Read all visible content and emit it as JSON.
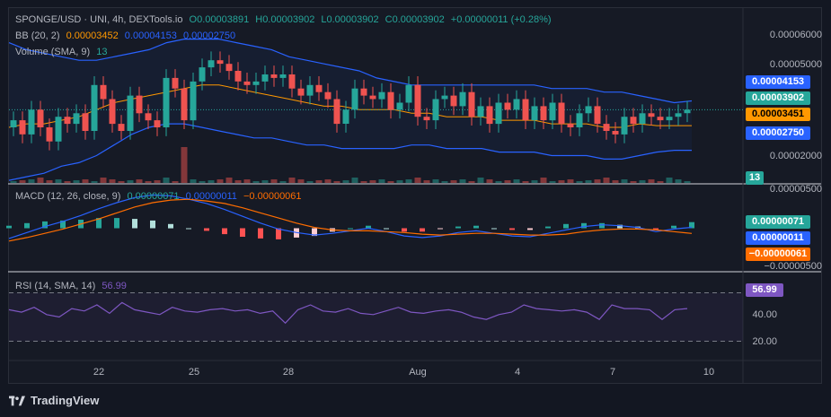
{
  "header": {
    "symbol": "SPONGE/USD · UNI, 4h, DEXTools.io",
    "open": "O0.00003891",
    "high": "H0.00003902",
    "low": "L0.00003902",
    "close": "C0.00003902",
    "change": "+0.00000011 (+0.28%)"
  },
  "bb_legend": {
    "label": "BB (20, 2)",
    "basis": "0.00003452",
    "upper": "0.00004153",
    "lower": "0.00002750"
  },
  "volume_legend": {
    "label": "Volume (SMA, 9)",
    "value": "13"
  },
  "macd_legend": {
    "label": "MACD (12, 26, close, 9)",
    "hist": "0.00000071",
    "macd": "0.00000011",
    "signal": "−0.00000061"
  },
  "rsi_legend": {
    "label": "RSI (14, SMA, 14)",
    "value": "56.99"
  },
  "price_axis": [
    "0.00006000",
    "0.00005000",
    "0.00002000"
  ],
  "price_tags": {
    "upper": "0.00004153",
    "last": "0.00003902",
    "basis": "0.00003451",
    "lower": "0.00002750",
    "volume": "13"
  },
  "macd_axis": [
    "0.00000500",
    "−0.00000500"
  ],
  "macd_tags": {
    "hist": "0.00000071",
    "macd": "0.00000011",
    "signal": "−0.00000061"
  },
  "rsi_axis": [
    "40.00",
    "20.00"
  ],
  "rsi_tag": "56.99",
  "x_axis": [
    "22",
    "25",
    "28",
    "Aug",
    "4",
    "7",
    "10"
  ],
  "brand": "TradingView",
  "colors": {
    "up": "#26a69a",
    "down": "#ef5350",
    "bb_band": "#2962ff",
    "bb_basis": "#ff9800",
    "macd": "#2962ff",
    "signal": "#ff6d00",
    "rsi": "#7e57c2",
    "hist_up": "#26a69a",
    "hist_up_weak": "#b2dfdb",
    "hist_down": "#ff5252",
    "hist_down_weak": "#ffcdd2"
  },
  "chart_data": [
    {
      "type": "candlestick",
      "title": "SPONGE/USD · UNI, 4h, DEXTools.io",
      "ylim": [
        1.8e-05,
        6.5e-05
      ],
      "x_ticks": [
        "22",
        "25",
        "28",
        "Aug",
        "4",
        "7",
        "10"
      ],
      "close": [
        3.6,
        3.2,
        3.9,
        3.4,
        3.0,
        3.7,
        3.5,
        3.8,
        3.3,
        4.6,
        4.2,
        3.5,
        3.3,
        4.3,
        3.8,
        3.6,
        3.4,
        4.8,
        4.5,
        3.6,
        4.7,
        5.1,
        5.3,
        5.2,
        5.0,
        4.7,
        4.6,
        4.7,
        4.9,
        4.8,
        4.9,
        4.5,
        4.3,
        4.6,
        4.4,
        4.2,
        3.5,
        3.9,
        4.5,
        4.3,
        4.2,
        4.4,
        3.9,
        4.1,
        4.6,
        3.7,
        3.6,
        4.2,
        4.3,
        4.0,
        4.4,
        3.7,
        4.0,
        3.5,
        4.1,
        3.9,
        4.2,
        3.6,
        4.0,
        3.6,
        4.1,
        3.5,
        3.4,
        3.8,
        4.0,
        3.5,
        3.3,
        3.2,
        3.7,
        3.5,
        3.8,
        3.7,
        3.6,
        3.7,
        3.8,
        3.9
      ],
      "bb_upper": [
        5.8,
        5.6,
        5.5,
        5.4,
        5.3,
        5.3,
        5.4,
        5.5,
        5.6,
        5.8,
        5.9,
        5.9,
        5.9,
        5.8,
        5.7,
        5.6,
        5.4,
        5.3,
        5.2,
        5.1,
        5.0,
        4.8,
        4.7,
        4.6,
        4.6,
        4.6,
        4.6,
        4.6,
        4.6,
        4.6,
        4.6,
        4.5,
        4.5,
        4.5,
        4.4,
        4.4,
        4.3,
        4.2,
        4.1,
        4.15
      ],
      "bb_basis": [
        3.4,
        3.5,
        3.5,
        3.6,
        3.7,
        3.9,
        4.1,
        4.2,
        4.3,
        4.4,
        4.5,
        4.6,
        4.6,
        4.5,
        4.4,
        4.3,
        4.2,
        4.1,
        4.0,
        4.0,
        3.9,
        3.9,
        3.9,
        3.8,
        3.8,
        3.7,
        3.7,
        3.7,
        3.6,
        3.6,
        3.6,
        3.5,
        3.5,
        3.5,
        3.4,
        3.4,
        3.5,
        3.45,
        3.45,
        3.45
      ],
      "bb_lower": [
        1.9,
        2.0,
        2.1,
        2.3,
        2.4,
        2.6,
        2.9,
        3.2,
        3.4,
        3.5,
        3.5,
        3.4,
        3.3,
        3.2,
        3.1,
        3.1,
        3.0,
        2.9,
        2.9,
        2.8,
        2.8,
        2.8,
        2.8,
        2.9,
        2.9,
        2.8,
        2.8,
        2.8,
        2.7,
        2.7,
        2.7,
        2.6,
        2.6,
        2.6,
        2.5,
        2.5,
        2.6,
        2.7,
        2.75,
        2.75
      ]
    },
    {
      "type": "line",
      "title": "MACD (12, 26, close, 9)",
      "ylim": [
        -5e-06,
        5e-06
      ],
      "series": [
        {
          "name": "MACD",
          "values": [
            -1.2,
            -0.5,
            0.2,
            0.8,
            1.5,
            2.3,
            3.0,
            3.6,
            3.9,
            3.8,
            3.4,
            2.9,
            2.2,
            1.4,
            0.6,
            -0.1,
            -0.5,
            -0.8,
            -0.6,
            -0.3,
            0.0,
            -0.4,
            -0.9,
            -1.1,
            -0.9,
            -0.5,
            -0.3,
            -0.6,
            -0.9,
            -1.0,
            -0.6,
            -0.2,
            0.2,
            0.4,
            0.3,
            0.1,
            -0.4,
            -0.1,
            0.11
          ]
        },
        {
          "name": "Signal",
          "values": [
            -1.5,
            -1.1,
            -0.6,
            -0.1,
            0.5,
            1.1,
            1.8,
            2.5,
            3.0,
            3.3,
            3.4,
            3.2,
            2.9,
            2.4,
            1.8,
            1.2,
            0.6,
            0.1,
            -0.2,
            -0.3,
            -0.3,
            -0.4,
            -0.5,
            -0.7,
            -0.8,
            -0.7,
            -0.6,
            -0.6,
            -0.7,
            -0.8,
            -0.8,
            -0.7,
            -0.4,
            -0.2,
            -0.1,
            -0.1,
            -0.2,
            -0.4,
            -0.61
          ]
        }
      ]
    },
    {
      "type": "line",
      "title": "RSI (14, SMA, 14)",
      "ylim": [
        20,
        80
      ],
      "series": [
        {
          "name": "RSI",
          "values": [
            56,
            54,
            58,
            52,
            50,
            57,
            55,
            60,
            53,
            62,
            56,
            54,
            52,
            58,
            55,
            54,
            56,
            57,
            55,
            56,
            53,
            55,
            45,
            56,
            60,
            55,
            54,
            57,
            53,
            52,
            55,
            58,
            54,
            53,
            55,
            56,
            54,
            50,
            48,
            52,
            54,
            60,
            57,
            56,
            55,
            56,
            54,
            48,
            60,
            57,
            57,
            56,
            48,
            56,
            57
          ]
        }
      ]
    }
  ]
}
